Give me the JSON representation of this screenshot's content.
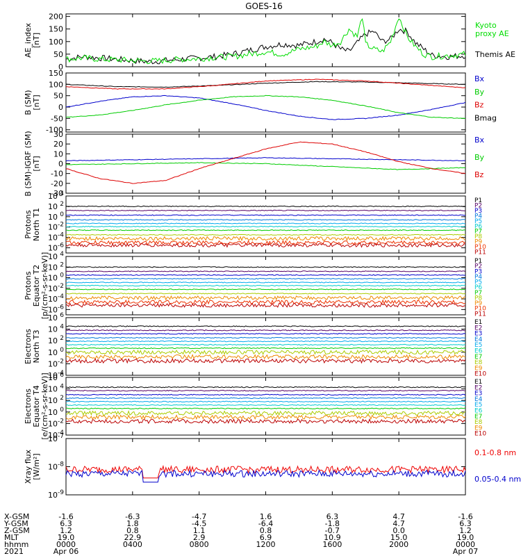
{
  "chart_data": {
    "type": "line",
    "title": "GOES-16",
    "x_range_hours": [
      0,
      24
    ],
    "panels": [
      {
        "id": "ae",
        "ylabel": [
          "AE_index",
          "[nT]"
        ],
        "yscale": "linear",
        "ylim": [
          0,
          210
        ],
        "ticks": [
          "0",
          "50",
          "100",
          "150",
          "200"
        ],
        "tick_values": [
          0,
          50,
          100,
          150,
          200
        ],
        "legend": [
          {
            "text": "Kyoto",
            "color": "#00dd00"
          },
          {
            "text": "proxy AE",
            "color": "#00dd00"
          },
          {
            "text": "Themis AE",
            "color": "#000000"
          }
        ],
        "series": [
          {
            "name": "Themis AE",
            "color": "#000000",
            "x": [
              0,
              1,
              2,
              3,
              4,
              5,
              6,
              7,
              8,
              9,
              10,
              11,
              12,
              13,
              14,
              15,
              15.5,
              16,
              16.5,
              17,
              17.5,
              18,
              18.5,
              19,
              19.5,
              20,
              20.5,
              21,
              21.5,
              22,
              23,
              24
            ],
            "y": [
              30,
              40,
              35,
              30,
              25,
              20,
              25,
              30,
              35,
              40,
              50,
              65,
              80,
              90,
              85,
              100,
              110,
              95,
              70,
              60,
              95,
              130,
              140,
              100,
              110,
              150,
              140,
              95,
              70,
              45,
              40,
              45
            ]
          },
          {
            "name": "Kyoto proxy AE",
            "color": "#00dd00",
            "x": [
              0,
              1,
              2,
              3,
              4,
              5,
              6,
              7,
              8,
              9,
              10,
              11,
              12,
              13,
              14,
              15,
              15.5,
              16,
              16.5,
              17,
              17.5,
              17.8,
              18,
              18.5,
              19,
              19.5,
              20,
              20.5,
              21,
              21.5,
              22,
              23,
              24
            ],
            "y": [
              30,
              35,
              30,
              28,
              25,
              22,
              25,
              30,
              32,
              38,
              40,
              50,
              60,
              50,
              70,
              80,
              100,
              85,
              100,
              150,
              120,
              200,
              90,
              70,
              60,
              100,
              200,
              120,
              80,
              50,
              40,
              45,
              50
            ]
          }
        ]
      },
      {
        "id": "b",
        "ylabel": [
          "B (SM)",
          "[nT]"
        ],
        "yscale": "linear",
        "ylim": [
          -110,
          150
        ],
        "ticks": [
          "-100",
          "-50",
          "0",
          "50",
          "100",
          "150"
        ],
        "tick_values": [
          -100,
          -50,
          0,
          50,
          100,
          150
        ],
        "legend": [
          {
            "text": "Bx",
            "color": "#0000cc"
          },
          {
            "text": "By",
            "color": "#00cc00"
          },
          {
            "text": "Bz",
            "color": "#dd0000"
          },
          {
            "text": "Bmag",
            "color": "#000000"
          }
        ],
        "series": [
          {
            "name": "Bmag",
            "color": "#000000",
            "x": [
              0,
              3,
              6,
              9,
              12,
              15,
              18,
              21,
              24
            ],
            "y": [
              100,
              90,
              88,
              95,
              105,
              112,
              110,
              105,
              100
            ]
          },
          {
            "name": "Bz",
            "color": "#dd0000",
            "x": [
              0,
              3,
              6,
              9,
              12,
              15,
              18,
              21,
              24
            ],
            "y": [
              90,
              80,
              80,
              95,
              115,
              122,
              115,
              100,
              85
            ]
          },
          {
            "name": "Bx",
            "color": "#0000cc",
            "x": [
              0,
              2,
              4,
              6,
              8,
              10,
              12,
              14,
              16,
              18,
              20,
              22,
              24
            ],
            "y": [
              0,
              25,
              45,
              50,
              40,
              15,
              -15,
              -40,
              -55,
              -50,
              -35,
              -10,
              20
            ]
          },
          {
            "name": "By",
            "color": "#00cc00",
            "x": [
              0,
              2,
              4,
              6,
              8,
              10,
              12,
              14,
              16,
              18,
              20,
              22,
              24
            ],
            "y": [
              -45,
              -35,
              -15,
              10,
              30,
              45,
              50,
              45,
              30,
              5,
              -25,
              -45,
              -50
            ]
          }
        ]
      },
      {
        "id": "bigrf",
        "ylabel": [
          "B (SM)-IGRF (SM)",
          "[nT]"
        ],
        "yscale": "linear",
        "ylim": [
          -30,
          30
        ],
        "ticks": [
          "-30",
          "-20",
          "-10",
          "0",
          "10",
          "20",
          "30"
        ],
        "tick_values": [
          -30,
          -20,
          -10,
          0,
          10,
          20,
          30
        ],
        "legend": [
          {
            "text": "Bx",
            "color": "#0000cc"
          },
          {
            "text": "By",
            "color": "#00cc00"
          },
          {
            "text": "Bz",
            "color": "#dd0000"
          }
        ],
        "series": [
          {
            "name": "Bx",
            "color": "#0000cc",
            "x": [
              0,
              4,
              8,
              12,
              16,
              20,
              24
            ],
            "y": [
              3,
              4,
              5,
              6,
              5,
              4,
              3
            ]
          },
          {
            "name": "By",
            "color": "#00cc00",
            "x": [
              0,
              4,
              8,
              12,
              16,
              20,
              24
            ],
            "y": [
              -1,
              0,
              1,
              0,
              -3,
              -6,
              -4
            ]
          },
          {
            "name": "Bz",
            "color": "#dd0000",
            "x": [
              0,
              2,
              4,
              6,
              8,
              10,
              12,
              14,
              16,
              18,
              20,
              22,
              24
            ],
            "y": [
              -5,
              -15,
              -20,
              -17,
              -5,
              5,
              15,
              22,
              20,
              12,
              2,
              -5,
              -10
            ]
          }
        ]
      },
      {
        "id": "pn",
        "ylabel": [
          "Protons",
          "North T1"
        ],
        "yscale": "log",
        "ylim_exp": [
          -7,
          4
        ],
        "ticks": [
          "10",
          "10",
          "10",
          "10",
          "10",
          "10"
        ],
        "tick_exps": [
          "-6",
          "-4",
          "-2",
          "0",
          "2",
          "4"
        ],
        "tick_values": [
          -6,
          -4,
          -2,
          0,
          2,
          4
        ],
        "legend": [
          {
            "text": "P1",
            "color": "#000000"
          },
          {
            "text": "P2",
            "color": "#550066"
          },
          {
            "text": "P3",
            "color": "#0000cc"
          },
          {
            "text": "P4",
            "color": "#0077dd"
          },
          {
            "text": "P5",
            "color": "#00aaee"
          },
          {
            "text": "P6",
            "color": "#00cccc"
          },
          {
            "text": "P7",
            "color": "#00cc00"
          },
          {
            "text": "P8",
            "color": "#aacc00"
          },
          {
            "text": "P9",
            "color": "#ee8800"
          },
          {
            "text": "P10",
            "color": "#ee3300"
          },
          {
            "text": "P11",
            "color": "#bb0000"
          }
        ],
        "levels": [
          2,
          1.2,
          0.3,
          -0.6,
          -1.3,
          -1.9,
          -2.6,
          -3.5,
          -4.2,
          -5.0,
          -5.5
        ]
      },
      {
        "id": "pe",
        "ylabel": [
          "Protons",
          "Equator T2",
          "[p/(cm²-s-sr-keV)]"
        ],
        "yscale": "log",
        "ylim_exp": [
          -7,
          4
        ],
        "ticks": [
          "10",
          "10",
          "10",
          "10",
          "10",
          "10"
        ],
        "tick_exps": [
          "-6",
          "-4",
          "-2",
          "0",
          "2",
          "4"
        ],
        "tick_values": [
          -6,
          -4,
          -2,
          0,
          2,
          4
        ],
        "legend": [
          {
            "text": "P1",
            "color": "#000000"
          },
          {
            "text": "P2",
            "color": "#550066"
          },
          {
            "text": "P3",
            "color": "#0000cc"
          },
          {
            "text": "P4",
            "color": "#0077dd"
          },
          {
            "text": "P5",
            "color": "#00aaee"
          },
          {
            "text": "P6",
            "color": "#00cccc"
          },
          {
            "text": "P7",
            "color": "#00cc00"
          },
          {
            "text": "P8",
            "color": "#aacc00"
          },
          {
            "text": "P9",
            "color": "#ee8800"
          },
          {
            "text": "P10",
            "color": "#ee3300"
          },
          {
            "text": "P11",
            "color": "#bb0000"
          }
        ],
        "levels": [
          2,
          1.2,
          0.5,
          -0.2,
          -0.9,
          -1.5,
          -2.2,
          -3.0,
          -3.8,
          -4.6,
          -5.2
        ]
      },
      {
        "id": "en",
        "ylabel": [
          "Electrons",
          "North T3"
        ],
        "yscale": "log",
        "ylim_exp": [
          -4,
          6
        ],
        "ticks": [
          "10",
          "10",
          "10",
          "10",
          "10",
          "10"
        ],
        "tick_exps": [
          "-4",
          "-2",
          "0",
          "2",
          "4",
          "6"
        ],
        "tick_values": [
          -4,
          -2,
          0,
          2,
          4,
          6
        ],
        "legend": [
          {
            "text": "E1",
            "color": "#000000"
          },
          {
            "text": "E2",
            "color": "#550066"
          },
          {
            "text": "E3",
            "color": "#0000cc"
          },
          {
            "text": "E4",
            "color": "#0077dd"
          },
          {
            "text": "E5",
            "color": "#00aaee"
          },
          {
            "text": "E6",
            "color": "#00cccc"
          },
          {
            "text": "E7",
            "color": "#00cc00"
          },
          {
            "text": "E8",
            "color": "#aacc00"
          },
          {
            "text": "E9",
            "color": "#ee8800"
          },
          {
            "text": "E10",
            "color": "#bb0000"
          }
        ],
        "levels": [
          4.5,
          3.8,
          3.2,
          2.5,
          1.9,
          1.3,
          0.7,
          0.0,
          -0.8,
          -1.5
        ]
      },
      {
        "id": "ee",
        "ylabel": [
          "Electrons",
          "Equator T4",
          "[e/(cm²-s-sr-keV)]"
        ],
        "yscale": "log",
        "ylim_exp": [
          -4,
          6
        ],
        "ticks": [
          "10",
          "10",
          "10",
          "10",
          "10",
          "10"
        ],
        "tick_exps": [
          "-4",
          "-2",
          "0",
          "2",
          "4",
          "6"
        ],
        "tick_values": [
          -4,
          -2,
          0,
          2,
          4,
          6
        ],
        "legend": [
          {
            "text": "E1",
            "color": "#000000"
          },
          {
            "text": "E2",
            "color": "#550066"
          },
          {
            "text": "E3",
            "color": "#0000cc"
          },
          {
            "text": "E4",
            "color": "#0077dd"
          },
          {
            "text": "E5",
            "color": "#00aaee"
          },
          {
            "text": "E6",
            "color": "#00cccc"
          },
          {
            "text": "E7",
            "color": "#00cc00"
          },
          {
            "text": "E8",
            "color": "#aacc00"
          },
          {
            "text": "E9",
            "color": "#ee8800"
          },
          {
            "text": "E10",
            "color": "#bb0000"
          }
        ],
        "levels": [
          4.3,
          3.7,
          3.0,
          2.4,
          1.8,
          1.2,
          0.6,
          -0.2,
          -0.9,
          -1.6
        ]
      },
      {
        "id": "xray",
        "ylabel": [
          "Xray flux",
          "[W/m²]"
        ],
        "yscale": "log",
        "ylim_exp": [
          -9,
          -7
        ],
        "ticks": [
          "10",
          "10",
          "10"
        ],
        "tick_exps": [
          "-9",
          "-8",
          "-7"
        ],
        "tick_values": [
          -9,
          -8,
          -7
        ],
        "legend": [
          {
            "text": "0.1-0.8 nm",
            "color": "#ee0000"
          },
          {
            "text": "0.05-0.4 nm",
            "color": "#0000cc"
          }
        ],
        "levels": [
          -8.1,
          -8.25
        ]
      }
    ],
    "xaxis": {
      "tick_hours": [
        0,
        4,
        8,
        12,
        16,
        20,
        24
      ],
      "row_labels": [
        "X-GSM",
        "Y-GSM",
        "Z-GSM",
        "MLT",
        "hhmm",
        "2021"
      ],
      "columns": [
        [
          "-1.6",
          "6.3",
          "1.2",
          "19.0",
          "0000",
          "Apr 06"
        ],
        [
          "-6.3",
          "1.8",
          "0.8",
          "22.9",
          "0400",
          ""
        ],
        [
          "-4.7",
          "-4.5",
          "1.1",
          "2.9",
          "0800",
          ""
        ],
        [
          "1.6",
          "-6.4",
          "0.8",
          "6.9",
          "1200",
          ""
        ],
        [
          "6.3",
          "-1.8",
          "-0.7",
          "10.9",
          "1600",
          ""
        ],
        [
          "4.7",
          "4.7",
          "0.0",
          "15.0",
          "2000",
          ""
        ],
        [
          "-1.6",
          "6.3",
          "1.2",
          "19.0",
          "0000",
          "Apr 07"
        ]
      ]
    }
  }
}
